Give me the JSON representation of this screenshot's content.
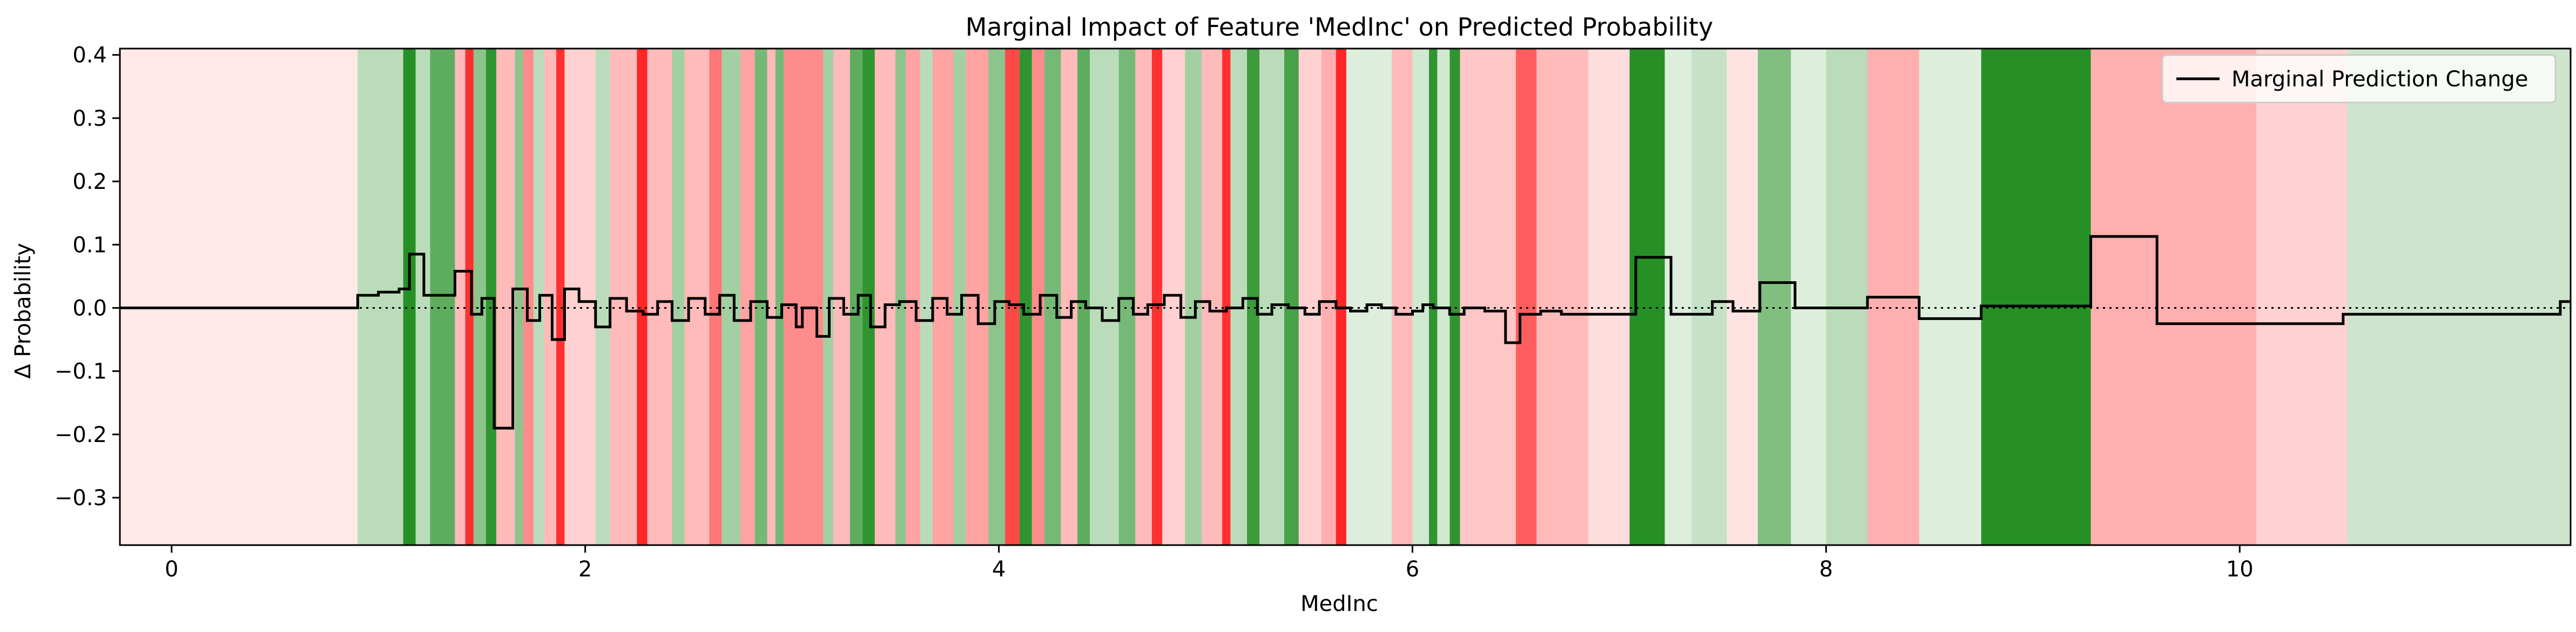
{
  "chart_data": {
    "type": "line",
    "title": "Marginal Impact of Feature 'MedInc' on Predicted Probability",
    "xlabel": "MedInc",
    "ylabel": "Δ Probability",
    "xlim": [
      -0.25,
      11.6
    ],
    "ylim": [
      -0.375,
      0.41
    ],
    "x_ticks": [
      0,
      2,
      4,
      6,
      8,
      10
    ],
    "y_ticks": [
      -0.3,
      -0.2,
      -0.1,
      0.0,
      0.1,
      0.2,
      0.3,
      0.4
    ],
    "x_tick_labels": [
      "0",
      "2",
      "4",
      "6",
      "8",
      "10"
    ],
    "y_tick_labels": [
      "−0.3",
      "−0.2",
      "−0.1",
      "0.0",
      "0.1",
      "0.2",
      "0.3",
      "0.4"
    ],
    "zero_line": true,
    "legend": {
      "position": "top-right",
      "entries": [
        "Marginal Prediction Change"
      ]
    },
    "colors": {
      "line": "#000000",
      "positive": "#1a8a1a",
      "negative": "#ff1a1a",
      "background": "#ffffff"
    },
    "series": [
      {
        "name": "Marginal Prediction Change",
        "x": [
          -0.25,
          0.9,
          1.0,
          1.1,
          1.15,
          1.22,
          1.37,
          1.45,
          1.5,
          1.56,
          1.65,
          1.72,
          1.78,
          1.84,
          1.9,
          1.97,
          2.05,
          2.12,
          2.2,
          2.28,
          2.35,
          2.42,
          2.5,
          2.58,
          2.65,
          2.72,
          2.8,
          2.88,
          2.95,
          3.02,
          3.05,
          3.12,
          3.18,
          3.25,
          3.32,
          3.38,
          3.45,
          3.52,
          3.6,
          3.68,
          3.75,
          3.82,
          3.9,
          3.98,
          4.05,
          4.12,
          4.2,
          4.28,
          4.35,
          4.42,
          4.5,
          4.58,
          4.65,
          4.72,
          4.8,
          4.88,
          4.95,
          5.02,
          5.1,
          5.18,
          5.25,
          5.32,
          5.4,
          5.48,
          5.55,
          5.63,
          5.7,
          5.78,
          5.85,
          5.92,
          6.0,
          6.05,
          6.1,
          6.18,
          6.25,
          6.35,
          6.45,
          6.52,
          6.62,
          6.72,
          6.82,
          6.92,
          7.0,
          7.08,
          7.25,
          7.45,
          7.55,
          7.68,
          7.85,
          8.0,
          8.2,
          8.45,
          8.75,
          9.28,
          9.6,
          10.1,
          10.5,
          11.55,
          11.6
        ],
        "values": [
          0.0,
          0.02,
          0.025,
          0.03,
          0.085,
          0.02,
          0.058,
          -0.01,
          0.015,
          -0.19,
          0.03,
          -0.02,
          0.02,
          -0.05,
          0.03,
          0.01,
          -0.03,
          0.015,
          -0.005,
          -0.01,
          0.01,
          -0.02,
          0.015,
          -0.01,
          0.02,
          -0.02,
          0.01,
          -0.015,
          0.005,
          -0.03,
          0.0,
          -0.045,
          0.015,
          -0.01,
          0.02,
          -0.03,
          0.005,
          0.01,
          -0.02,
          0.015,
          -0.01,
          0.02,
          -0.025,
          0.01,
          0.005,
          -0.01,
          0.02,
          -0.015,
          0.01,
          0.0,
          -0.02,
          0.015,
          -0.01,
          0.005,
          0.02,
          -0.015,
          0.01,
          -0.005,
          0.0,
          0.015,
          -0.01,
          0.005,
          0.0,
          -0.01,
          0.01,
          0.0,
          -0.005,
          0.005,
          0.0,
          -0.01,
          -0.005,
          0.005,
          0.0,
          -0.01,
          0.0,
          -0.005,
          -0.055,
          -0.01,
          -0.005,
          -0.01,
          -0.01,
          -0.01,
          -0.01,
          0.08,
          -0.01,
          0.01,
          -0.005,
          0.04,
          0.0,
          0.0,
          0.017,
          -0.017,
          0.003,
          0.113,
          -0.025,
          -0.025,
          -0.01,
          0.01,
          0.01
        ]
      }
    ],
    "background_bands": [
      {
        "x0": -0.25,
        "x1": 0.9,
        "impact": -0.1
      },
      {
        "x0": 0.9,
        "x1": 1.12,
        "impact": 0.3
      },
      {
        "x0": 1.12,
        "x1": 1.18,
        "impact": 0.95
      },
      {
        "x0": 1.18,
        "x1": 1.25,
        "impact": 0.3
      },
      {
        "x0": 1.25,
        "x1": 1.37,
        "impact": 0.7
      },
      {
        "x0": 1.37,
        "x1": 1.42,
        "impact": -0.3
      },
      {
        "x0": 1.42,
        "x1": 1.46,
        "impact": -0.9
      },
      {
        "x0": 1.46,
        "x1": 1.52,
        "impact": 0.5
      },
      {
        "x0": 1.52,
        "x1": 1.57,
        "impact": 0.9
      },
      {
        "x0": 1.57,
        "x1": 1.66,
        "impact": -0.3
      },
      {
        "x0": 1.66,
        "x1": 1.7,
        "impact": 0.5
      },
      {
        "x0": 1.7,
        "x1": 1.75,
        "impact": -0.5
      },
      {
        "x0": 1.75,
        "x1": 1.8,
        "impact": 0.3
      },
      {
        "x0": 1.8,
        "x1": 1.86,
        "impact": -0.3
      },
      {
        "x0": 1.86,
        "x1": 1.9,
        "impact": -0.9
      },
      {
        "x0": 1.9,
        "x1": 2.05,
        "impact": -0.2
      },
      {
        "x0": 2.05,
        "x1": 2.12,
        "impact": 0.3
      },
      {
        "x0": 2.12,
        "x1": 2.25,
        "impact": -0.3
      },
      {
        "x0": 2.25,
        "x1": 2.3,
        "impact": -0.95
      },
      {
        "x0": 2.3,
        "x1": 2.42,
        "impact": -0.3
      },
      {
        "x0": 2.42,
        "x1": 2.48,
        "impact": 0.4
      },
      {
        "x0": 2.48,
        "x1": 2.6,
        "impact": -0.3
      },
      {
        "x0": 2.6,
        "x1": 2.66,
        "impact": -0.6
      },
      {
        "x0": 2.66,
        "x1": 2.75,
        "impact": 0.4
      },
      {
        "x0": 2.75,
        "x1": 2.82,
        "impact": -0.4
      },
      {
        "x0": 2.82,
        "x1": 2.88,
        "impact": 0.6
      },
      {
        "x0": 2.88,
        "x1": 2.92,
        "impact": -0.3
      },
      {
        "x0": 2.92,
        "x1": 2.96,
        "impact": 0.6
      },
      {
        "x0": 2.96,
        "x1": 3.15,
        "impact": -0.5
      },
      {
        "x0": 3.15,
        "x1": 3.2,
        "impact": 0.4
      },
      {
        "x0": 3.2,
        "x1": 3.28,
        "impact": -0.3
      },
      {
        "x0": 3.28,
        "x1": 3.34,
        "impact": 0.7
      },
      {
        "x0": 3.34,
        "x1": 3.4,
        "impact": 0.9
      },
      {
        "x0": 3.4,
        "x1": 3.5,
        "impact": -0.3
      },
      {
        "x0": 3.5,
        "x1": 3.55,
        "impact": 0.5
      },
      {
        "x0": 3.55,
        "x1": 3.62,
        "impact": -0.4
      },
      {
        "x0": 3.62,
        "x1": 3.68,
        "impact": 0.3
      },
      {
        "x0": 3.68,
        "x1": 3.78,
        "impact": -0.4
      },
      {
        "x0": 3.78,
        "x1": 3.84,
        "impact": 0.4
      },
      {
        "x0": 3.84,
        "x1": 3.95,
        "impact": -0.4
      },
      {
        "x0": 3.95,
        "x1": 4.03,
        "impact": 0.5
      },
      {
        "x0": 4.03,
        "x1": 4.1,
        "impact": -0.8
      },
      {
        "x0": 4.1,
        "x1": 4.16,
        "impact": 0.9
      },
      {
        "x0": 4.16,
        "x1": 4.22,
        "impact": -0.5
      },
      {
        "x0": 4.22,
        "x1": 4.3,
        "impact": 0.6
      },
      {
        "x0": 4.3,
        "x1": 4.38,
        "impact": -0.3
      },
      {
        "x0": 4.38,
        "x1": 4.44,
        "impact": 0.7
      },
      {
        "x0": 4.44,
        "x1": 4.58,
        "impact": 0.3
      },
      {
        "x0": 4.58,
        "x1": 4.66,
        "impact": 0.6
      },
      {
        "x0": 4.66,
        "x1": 4.74,
        "impact": -0.3
      },
      {
        "x0": 4.74,
        "x1": 4.79,
        "impact": -0.9
      },
      {
        "x0": 4.79,
        "x1": 4.9,
        "impact": -0.2
      },
      {
        "x0": 4.9,
        "x1": 4.98,
        "impact": 0.4
      },
      {
        "x0": 4.98,
        "x1": 5.08,
        "impact": -0.3
      },
      {
        "x0": 5.08,
        "x1": 5.12,
        "impact": -0.9
      },
      {
        "x0": 5.12,
        "x1": 5.2,
        "impact": 0.3
      },
      {
        "x0": 5.2,
        "x1": 5.26,
        "impact": 0.85
      },
      {
        "x0": 5.26,
        "x1": 5.38,
        "impact": 0.3
      },
      {
        "x0": 5.38,
        "x1": 5.45,
        "impact": 0.8
      },
      {
        "x0": 5.45,
        "x1": 5.56,
        "impact": -0.2
      },
      {
        "x0": 5.56,
        "x1": 5.63,
        "impact": -0.35
      },
      {
        "x0": 5.63,
        "x1": 5.68,
        "impact": -0.95
      },
      {
        "x0": 5.68,
        "x1": 5.9,
        "impact": 0.15
      },
      {
        "x0": 5.9,
        "x1": 6.0,
        "impact": -0.3
      },
      {
        "x0": 6.0,
        "x1": 6.08,
        "impact": 0.2
      },
      {
        "x0": 6.08,
        "x1": 6.12,
        "impact": 0.9
      },
      {
        "x0": 6.12,
        "x1": 6.18,
        "impact": 0.2
      },
      {
        "x0": 6.18,
        "x1": 6.23,
        "impact": 0.9
      },
      {
        "x0": 6.23,
        "x1": 6.5,
        "impact": -0.25
      },
      {
        "x0": 6.5,
        "x1": 6.6,
        "impact": -0.7
      },
      {
        "x0": 6.6,
        "x1": 6.85,
        "impact": -0.3
      },
      {
        "x0": 6.85,
        "x1": 7.05,
        "impact": -0.15
      },
      {
        "x0": 7.05,
        "x1": 7.22,
        "impact": 0.95
      },
      {
        "x0": 7.22,
        "x1": 7.35,
        "impact": 0.15
      },
      {
        "x0": 7.35,
        "x1": 7.52,
        "impact": 0.25
      },
      {
        "x0": 7.52,
        "x1": 7.67,
        "impact": -0.12
      },
      {
        "x0": 7.67,
        "x1": 7.83,
        "impact": 0.55
      },
      {
        "x0": 7.83,
        "x1": 8.0,
        "impact": 0.15
      },
      {
        "x0": 8.0,
        "x1": 8.2,
        "impact": 0.3
      },
      {
        "x0": 8.2,
        "x1": 8.45,
        "impact": -0.35
      },
      {
        "x0": 8.45,
        "x1": 8.75,
        "impact": 0.15
      },
      {
        "x0": 8.75,
        "x1": 9.28,
        "impact": 0.95
      },
      {
        "x0": 9.28,
        "x1": 10.08,
        "impact": -0.35
      },
      {
        "x0": 10.08,
        "x1": 10.52,
        "impact": -0.2
      },
      {
        "x0": 10.52,
        "x1": 11.6,
        "impact": 0.22
      }
    ]
  }
}
